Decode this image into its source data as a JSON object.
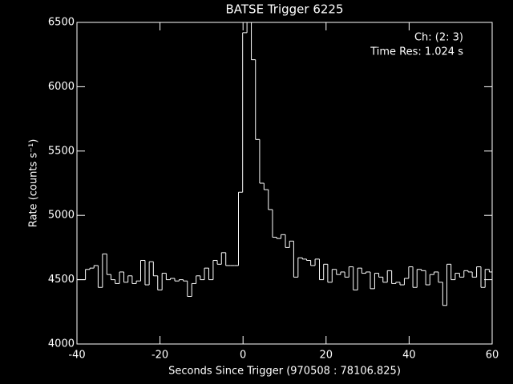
{
  "chart_data": {
    "type": "step",
    "title": "BATSE Trigger 6225",
    "annotations": [
      "Ch: (2: 3)",
      "Time Res: 1.024 s"
    ],
    "x_label": "Seconds Since Trigger (970508 : 78106.825)",
    "y_label": "Rate (counts s⁻¹)",
    "color": "#ffffff",
    "xlim": [
      -40,
      60
    ],
    "xticks": [
      -40,
      -20,
      0,
      20,
      40,
      60
    ],
    "ylim": [
      4000,
      6500
    ],
    "yticks": [
      4000,
      4500,
      5000,
      5500,
      6000,
      6500
    ],
    "x": [
      -39.5,
      -38.5,
      -37.4,
      -36.4,
      -35.4,
      -34.4,
      -33.3,
      -32.3,
      -31.3,
      -30.3,
      -29.2,
      -28.2,
      -27.2,
      -26.2,
      -25.2,
      -24.1,
      -23.1,
      -22.1,
      -21.1,
      -20.0,
      -19.0,
      -18.0,
      -17.0,
      -15.9,
      -14.9,
      -13.9,
      -12.9,
      -11.8,
      -10.8,
      -9.8,
      -8.8,
      -7.7,
      -6.7,
      -5.7,
      -4.7,
      -3.6,
      -2.6,
      -1.6,
      -0.6,
      0.4,
      1.5,
      2.5,
      3.5,
      4.5,
      5.6,
      6.6,
      7.6,
      8.6,
      9.7,
      10.7,
      11.7,
      12.7,
      13.8,
      14.8,
      15.8,
      16.8,
      17.9,
      18.9,
      19.9,
      20.9,
      22.0,
      23.0,
      24.0,
      25.0,
      26.0,
      27.1,
      28.1,
      29.1,
      30.1,
      31.2,
      32.2,
      33.2,
      34.2,
      35.3,
      36.3,
      37.3,
      38.3,
      39.4,
      40.4,
      41.4,
      42.4,
      43.5,
      44.5,
      45.5,
      46.5,
      47.6,
      48.6,
      49.6,
      50.6,
      51.6,
      52.7,
      53.7,
      54.7,
      55.7,
      56.8,
      57.8,
      58.8,
      59.8
    ],
    "values": [
      4500,
      4500,
      4580,
      4590,
      4610,
      4440,
      4700,
      4540,
      4500,
      4470,
      4560,
      4480,
      4530,
      4470,
      4490,
      4650,
      4460,
      4640,
      4530,
      4420,
      4550,
      4500,
      4510,
      4490,
      4500,
      4490,
      4370,
      4470,
      4530,
      4500,
      4590,
      4500,
      4650,
      4620,
      4710,
      4610,
      4610,
      4610,
      5180,
      6420,
      6500,
      6210,
      5590,
      5250,
      5200,
      5045,
      4830,
      4820,
      4850,
      4750,
      4800,
      4520,
      4670,
      4660,
      4650,
      4610,
      4660,
      4500,
      4620,
      4480,
      4580,
      4540,
      4560,
      4520,
      4600,
      4420,
      4590,
      4550,
      4560,
      4430,
      4550,
      4520,
      4480,
      4570,
      4470,
      4480,
      4460,
      4510,
      4600,
      4440,
      4580,
      4570,
      4460,
      4540,
      4560,
      4480,
      4300,
      4620,
      4500,
      4550,
      4520,
      4570,
      4560,
      4520,
      4600,
      4440,
      4580,
      4560
    ]
  }
}
